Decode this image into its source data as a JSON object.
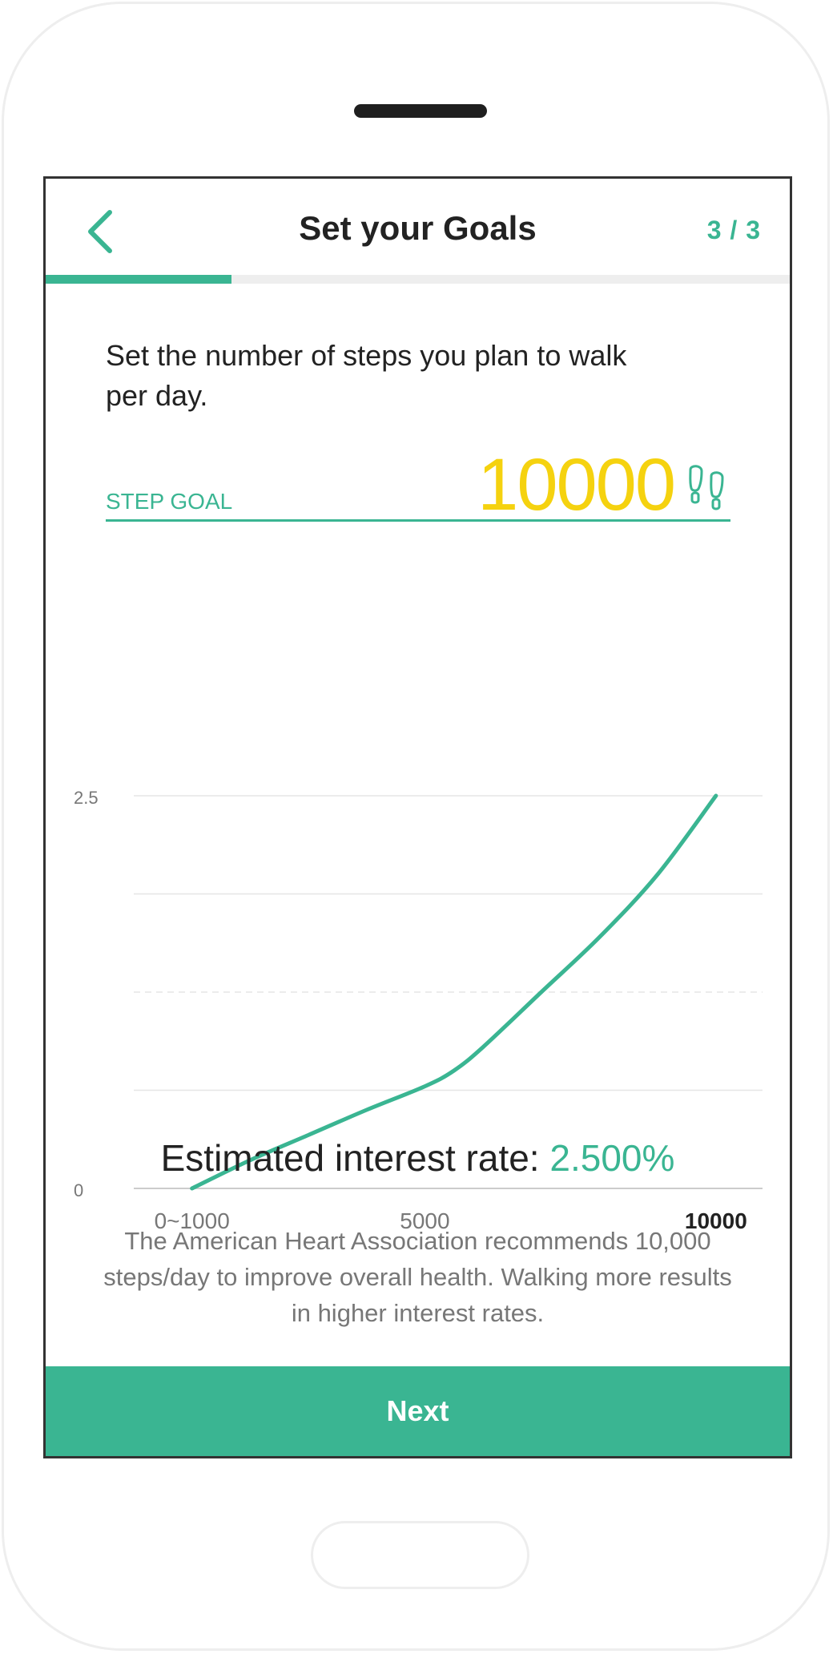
{
  "header": {
    "title": "Set your Goals",
    "step_counter": "3 / 3",
    "progress_fraction": 0.25
  },
  "intro": {
    "text": "Set the number of steps you plan to walk per day."
  },
  "goal": {
    "label": "STEP GOAL",
    "value": "10000",
    "icon": "footsteps-icon"
  },
  "chart_data": {
    "type": "line",
    "title": "",
    "xlabel": "",
    "ylabel": "",
    "x_tick_labels": [
      {
        "x": 1000,
        "label": "0~1000",
        "bold": false
      },
      {
        "x": 5000,
        "label": "5000",
        "bold": false
      },
      {
        "x": 10000,
        "label": "10000",
        "bold": true
      }
    ],
    "y_tick_labels": [
      {
        "y": 0,
        "label": "0"
      },
      {
        "y": 2.5,
        "label": "2.5"
      }
    ],
    "gridlines_y": [
      0.625,
      1.25,
      1.875,
      2.5
    ],
    "xlim": [
      0,
      10800
    ],
    "ylim": [
      0,
      2.5
    ],
    "series": [
      {
        "name": "Estimated interest rate",
        "color": "#3ab592",
        "points": [
          [
            1000,
            0.0
          ],
          [
            2000,
            0.18
          ],
          [
            3000,
            0.34
          ],
          [
            4000,
            0.5
          ],
          [
            5000,
            0.65
          ],
          [
            5500,
            0.75
          ],
          [
            6000,
            0.9
          ],
          [
            7000,
            1.25
          ],
          [
            8000,
            1.6
          ],
          [
            9000,
            2.0
          ],
          [
            10000,
            2.5
          ]
        ]
      }
    ]
  },
  "rate": {
    "label": "Estimated interest rate:",
    "value": "2.500%"
  },
  "note": {
    "text": "The American Heart Association recommends 10,000 steps/day to improve overall health. Walking more results in higher interest rates."
  },
  "actions": {
    "next_label": "Next"
  },
  "colors": {
    "accent": "#3ab592",
    "goal": "#f5d20f"
  }
}
